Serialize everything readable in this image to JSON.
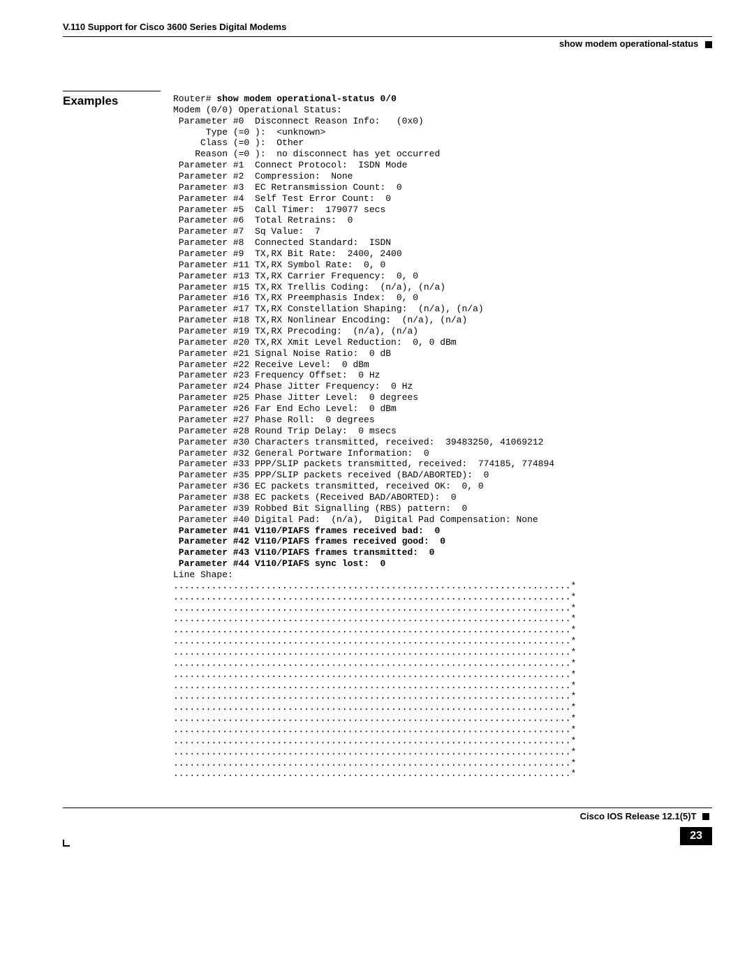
{
  "header": {
    "doc_title": "V.110 Support for Cisco 3600 Series Digital Modems",
    "section": "show modem operational-status"
  },
  "sidelabel": "Examples",
  "cmd": {
    "prompt": "Router# ",
    "command": "show modem operational-status 0/0"
  },
  "output_pre": "Modem (0/0) Operational Status:\n Parameter #0  Disconnect Reason Info:   (0x0)\n      Type (=0 ):  <unknown>\n     Class (=0 ):  Other\n    Reason (=0 ):  no disconnect has yet occurred\n Parameter #1  Connect Protocol:  ISDN Mode\n Parameter #2  Compression:  None\n Parameter #3  EC Retransmission Count:  0\n Parameter #4  Self Test Error Count:  0\n Parameter #5  Call Timer:  179077 secs\n Parameter #6  Total Retrains:  0\n Parameter #7  Sq Value:  7\n Parameter #8  Connected Standard:  ISDN\n Parameter #9  TX,RX Bit Rate:  2400, 2400\n Parameter #11 TX,RX Symbol Rate:  0, 0\n Parameter #13 TX,RX Carrier Frequency:  0, 0\n Parameter #15 TX,RX Trellis Coding:  (n/a), (n/a)\n Parameter #16 TX,RX Preemphasis Index:  0, 0\n Parameter #17 TX,RX Constellation Shaping:  (n/a), (n/a)\n Parameter #18 TX,RX Nonlinear Encoding:  (n/a), (n/a)\n Parameter #19 TX,RX Precoding:  (n/a), (n/a)\n Parameter #20 TX,RX Xmit Level Reduction:  0, 0 dBm\n Parameter #21 Signal Noise Ratio:  0 dB\n Parameter #22 Receive Level:  0 dBm\n Parameter #23 Frequency Offset:  0 Hz\n Parameter #24 Phase Jitter Frequency:  0 Hz\n Parameter #25 Phase Jitter Level:  0 degrees\n Parameter #26 Far End Echo Level:  0 dBm\n Parameter #27 Phase Roll:  0 degrees\n Parameter #28 Round Trip Delay:  0 msecs\n Parameter #30 Characters transmitted, received:  39483250, 41069212\n Parameter #32 General Portware Information:  0\n Parameter #33 PPP/SLIP packets transmitted, received:  774185, 774894\n Parameter #35 PPP/SLIP packets received (BAD/ABORTED):  0\n Parameter #36 EC packets transmitted, received OK:  0, 0\n Parameter #38 EC packets (Received BAD/ABORTED):  0\n Parameter #39 Robbed Bit Signalling (RBS) pattern:  0\n Parameter #40 Digital Pad:  (n/a),  Digital Pad Compensation: None",
  "output_bold": " Parameter #41 V110/PIAFS frames received bad:  0\n Parameter #42 V110/PIAFS frames received good:  0\n Parameter #43 V110/PIAFS frames transmitted:  0\n Parameter #44 V110/PIAFS sync lost:  0",
  "output_post": "Line Shape:\n.........................................................................*\n.........................................................................*\n.........................................................................*\n.........................................................................*\n.........................................................................*\n.........................................................................*\n.........................................................................*\n.........................................................................*\n.........................................................................*\n.........................................................................*\n.........................................................................*\n.........................................................................*\n.........................................................................*\n.........................................................................*\n.........................................................................*\n.........................................................................*\n.........................................................................*\n.........................................................................*",
  "footer": {
    "release": "Cisco IOS Release 12.1(5)T",
    "page": "23"
  }
}
